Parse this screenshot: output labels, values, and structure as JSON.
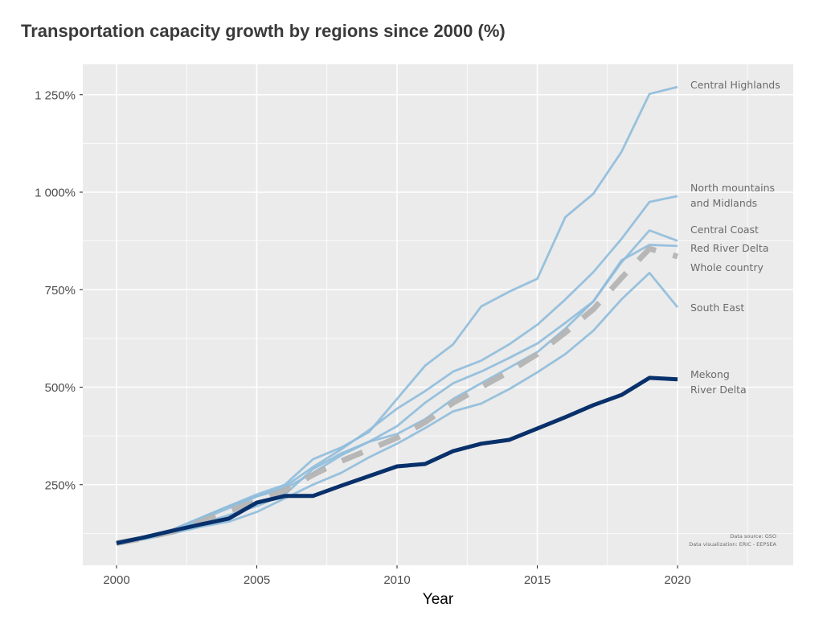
{
  "chart_data": {
    "type": "line",
    "title": "Transportation capacity growth by regions since 2000 (%)",
    "xlabel": "Year",
    "ylabel": "",
    "xlim": [
      1999,
      2024
    ],
    "ylim": [
      60,
      1330
    ],
    "x_ticks": [
      2000,
      2005,
      2010,
      2015,
      2020
    ],
    "x_tick_labels": [
      "2000",
      "2005",
      "2010",
      "2015",
      "2020"
    ],
    "y_ticks": [
      250,
      500,
      750,
      1000,
      1250
    ],
    "y_tick_labels": [
      "250%",
      "500%",
      "750%",
      "1 000%",
      "1 250%"
    ],
    "grid": true,
    "legend": "direct labels at line ends (right)",
    "x": [
      2000,
      2001,
      2002,
      2003,
      2004,
      2005,
      2006,
      2007,
      2008,
      2009,
      2010,
      2011,
      2012,
      2013,
      2014,
      2015,
      2016,
      2017,
      2018,
      2019,
      2020
    ],
    "series": [
      {
        "name": "Central Highlands",
        "label_lines": [
          "Central Highlands"
        ],
        "style": "light",
        "values": [
          100,
          118,
          135,
          165,
          195,
          225,
          250,
          315,
          345,
          385,
          470,
          555,
          610,
          707,
          745,
          778,
          936,
          996,
          1103,
          1252,
          1270
        ]
      },
      {
        "name": "North mountains and Midlands",
        "label_lines": [
          "North mountains",
          "and Midlands"
        ],
        "style": "light",
        "values": [
          100,
          115,
          135,
          165,
          195,
          220,
          245,
          295,
          340,
          390,
          445,
          490,
          540,
          568,
          610,
          660,
          725,
          795,
          880,
          975,
          990
        ]
      },
      {
        "name": "Central Coast",
        "label_lines": [
          "Central Coast"
        ],
        "style": "light",
        "values": [
          100,
          112,
          130,
          160,
          190,
          220,
          240,
          280,
          325,
          360,
          400,
          460,
          510,
          540,
          575,
          612,
          665,
          720,
          820,
          902,
          875
        ]
      },
      {
        "name": "Red River Delta",
        "label_lines": [
          "Red River Delta"
        ],
        "style": "light",
        "values": [
          100,
          112,
          128,
          150,
          172,
          195,
          225,
          290,
          330,
          360,
          380,
          418,
          470,
          510,
          550,
          590,
          650,
          720,
          825,
          865,
          862
        ]
      },
      {
        "name": "Whole country",
        "label_lines": [
          "Whole country"
        ],
        "style": "dashed",
        "values": [
          100,
          113,
          130,
          155,
          182,
          208,
          235,
          275,
          310,
          340,
          370,
          410,
          460,
          500,
          540,
          585,
          640,
          700,
          780,
          855,
          835
        ]
      },
      {
        "name": "South East",
        "label_lines": [
          "South East"
        ],
        "style": "light",
        "values": [
          100,
          110,
          125,
          142,
          155,
          180,
          215,
          250,
          280,
          320,
          355,
          395,
          438,
          458,
          495,
          538,
          585,
          645,
          725,
          793,
          705
        ]
      },
      {
        "name": "Mekong River Delta",
        "label_lines": [
          "Mekong",
          "River Delta"
        ],
        "style": "dark",
        "values": [
          100,
          115,
          132,
          148,
          163,
          204,
          221,
          221,
          247,
          272,
          297,
          303,
          336,
          355,
          365,
          394,
          423,
          454,
          480,
          524,
          520
        ]
      }
    ],
    "colors": {
      "light": "#8fbcdc",
      "dark": "#08306b",
      "dashed": "#b4b4b4",
      "panel": "#ebebeb",
      "grid": "#ffffff"
    },
    "caption_lines": [
      "Data source: GSO",
      "Data visualization: ERIC - EEPSEA"
    ]
  }
}
